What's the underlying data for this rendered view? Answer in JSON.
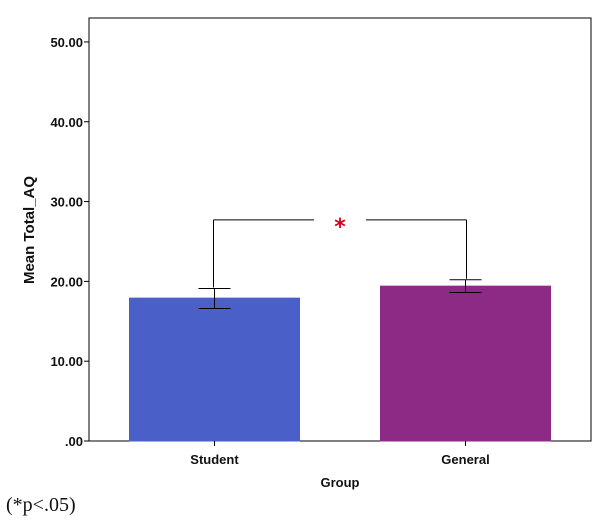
{
  "chart_data": {
    "type": "bar",
    "xlabel": "Group",
    "ylabel": "Mean Total_AQ",
    "categories": [
      "Student",
      "General"
    ],
    "values": [
      17.9,
      19.4
    ],
    "error_bars": [
      {
        "low": 16.6,
        "high": 19.1
      },
      {
        "low": 18.6,
        "high": 20.2
      }
    ],
    "colors": [
      "#4a5fc8",
      "#8c2a86"
    ],
    "ylim": [
      0,
      53
    ],
    "yticks": [
      0,
      10,
      20,
      30,
      40,
      50
    ],
    "ytick_labels": [
      ".00",
      "10.00",
      "20.00",
      "30.00",
      "40.00",
      "50.00"
    ],
    "significance": {
      "marker": "*",
      "bracket_y": 27.7,
      "color": "#d0021b"
    },
    "grid": false
  },
  "footnote": "(*p<.05)"
}
